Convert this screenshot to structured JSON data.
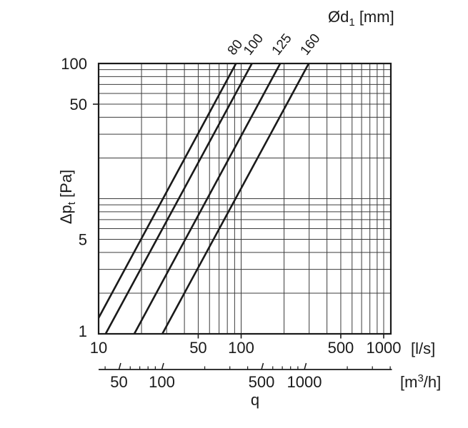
{
  "chart_data": {
    "type": "line",
    "scale": "log-log",
    "title": {
      "text": "Ød1 [mm]",
      "parts": [
        {
          "t": "Ød"
        },
        {
          "t": "1",
          "style": "sub"
        },
        {
          "t": " [mm]"
        }
      ]
    },
    "x_axis": {
      "label": "q",
      "primary_unit": "[l/s]",
      "secondary_unit_text": "[m3/h]",
      "secondary_unit_parts": [
        {
          "t": "[m"
        },
        {
          "t": "3",
          "style": "sup"
        },
        {
          "t": "/h]"
        }
      ],
      "scale": "log",
      "range_ls": [
        10,
        1120
      ],
      "gridlines_ls": [
        10,
        20,
        30,
        40,
        50,
        60,
        70,
        80,
        90,
        100,
        200,
        300,
        400,
        500,
        600,
        700,
        800,
        900,
        1000
      ],
      "tick_labels_ls": [
        10,
        50,
        100,
        500,
        1000
      ],
      "secondary_m3h": {
        "ticks": [
          40,
          50,
          60,
          70,
          80,
          90,
          100,
          200,
          300,
          400,
          500,
          600,
          700,
          800,
          900,
          1000,
          2000,
          3000,
          4000
        ],
        "tick_labels": [
          50,
          100,
          500,
          1000
        ]
      }
    },
    "y_axis": {
      "label_text": "Δpt [Pa]",
      "label_parts": [
        {
          "t": "Δp"
        },
        {
          "t": "t",
          "style": "sub"
        },
        {
          "t": " [Pa]"
        }
      ],
      "scale": "log",
      "range_pa": [
        1,
        100
      ],
      "gridlines": [
        1,
        2,
        3,
        4,
        5,
        6,
        7,
        8,
        9,
        10,
        20,
        30,
        40,
        50,
        60,
        70,
        80,
        90,
        100
      ],
      "tick_labels": [
        100,
        50,
        5,
        1
      ],
      "outer_tick_values": [
        50
      ]
    },
    "series": [
      {
        "label": "80",
        "diameter_mm": 80,
        "points_q_ls_vs_dp_pa": [
          [
            8.7,
            1
          ],
          [
            92,
            100
          ]
        ]
      },
      {
        "label": "100",
        "diameter_mm": 100,
        "points_q_ls_vs_dp_pa": [
          [
            11.2,
            1
          ],
          [
            119,
            100
          ]
        ]
      },
      {
        "label": "125",
        "diameter_mm": 125,
        "points_q_ls_vs_dp_pa": [
          [
            17.8,
            1
          ],
          [
            188,
            100
          ]
        ]
      },
      {
        "label": "160",
        "diameter_mm": 160,
        "points_q_ls_vs_dp_pa": [
          [
            28,
            1
          ],
          [
            298,
            100
          ]
        ]
      }
    ],
    "colors": {
      "line": "#1a1a1a",
      "grid": "#3c3c3c",
      "border": "#1a1a1a",
      "text": "#1a1a1a",
      "background": "#ffffff"
    }
  }
}
